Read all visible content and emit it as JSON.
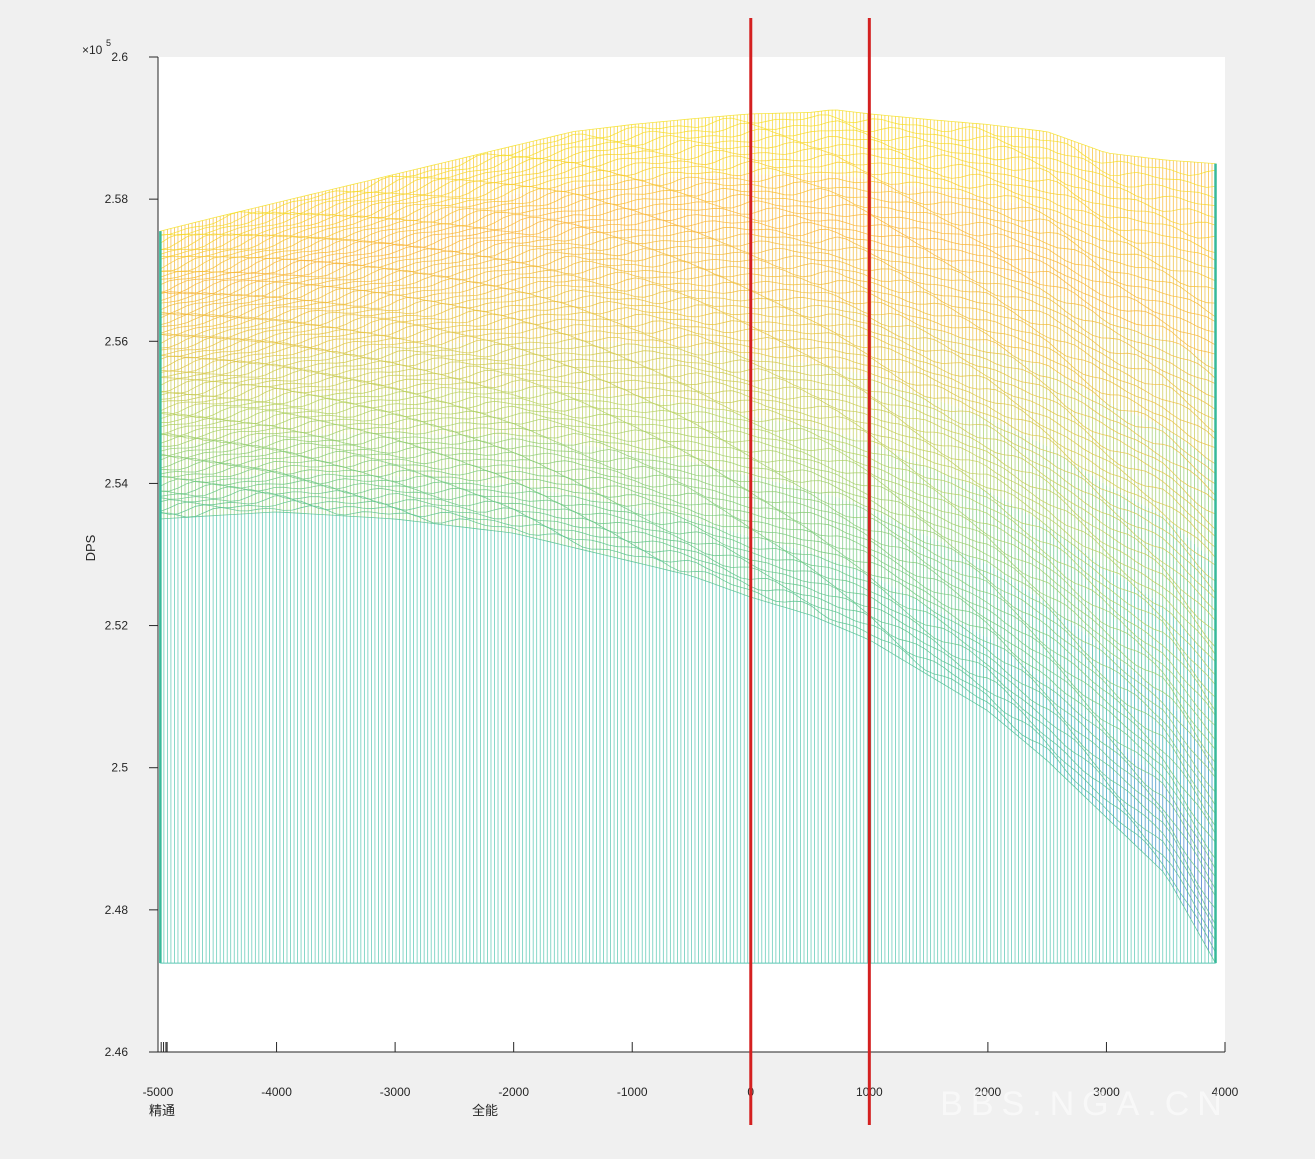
{
  "chart_data": {
    "type": "mesh-surface",
    "view": "side (x-z projection)",
    "ylabel": "DPS",
    "y_exponent_label": "×10",
    "y_exponent_power": "5",
    "ylim": [
      2.46,
      2.6
    ],
    "yticks": [
      2.46,
      2.48,
      2.5,
      2.52,
      2.54,
      2.56,
      2.58,
      2.6
    ],
    "ytick_labels": [
      "2.46",
      "2.48",
      "2.5",
      "2.52",
      "2.54",
      "2.56",
      "2.58",
      "2.6"
    ],
    "xlim": [
      -5000,
      4000
    ],
    "xticks": [
      -5000,
      -4000,
      -3000,
      -2000,
      -1000,
      0,
      1000,
      2000,
      3000,
      4000
    ],
    "xtick_labels": [
      "-5000",
      "-4000",
      "-3000",
      "-2000",
      "-1000",
      "0",
      "1000",
      "2000",
      "3000",
      "4000"
    ],
    "x_secondary_ticks": [
      -4990,
      -4970,
      -4950,
      -4940
    ],
    "xlabels": [
      "精通",
      "全能"
    ],
    "surface_base_z": 2.4725,
    "top_envelope": {
      "x": [
        -4980,
        -4500,
        -4000,
        -3500,
        -3000,
        -2500,
        -2000,
        -1500,
        -1000,
        -500,
        0,
        500,
        700,
        1000,
        1500,
        2000,
        2500,
        3000,
        3500,
        3920
      ],
      "z": [
        2.5755,
        2.5775,
        2.5795,
        2.5815,
        2.5835,
        2.5855,
        2.5875,
        2.5895,
        2.5905,
        2.5913,
        2.592,
        2.5922,
        2.5926,
        2.592,
        2.5912,
        2.5905,
        2.5895,
        2.5865,
        2.5855,
        2.585
      ]
    },
    "bottom_envelope": {
      "x": [
        -4980,
        -4500,
        -4000,
        -3500,
        -3000,
        -2500,
        -2000,
        -1500,
        -1000,
        -500,
        0,
        500,
        1000,
        1500,
        2000,
        2500,
        3000,
        3500,
        3920
      ],
      "z": [
        2.535,
        2.5355,
        2.536,
        2.5355,
        2.535,
        2.534,
        2.533,
        2.531,
        2.529,
        2.527,
        2.524,
        2.5215,
        2.518,
        2.513,
        2.508,
        2.501,
        2.493,
        2.485,
        2.4725
      ]
    },
    "reference_lines_x": [
      0,
      1000
    ],
    "reference_line_color": "#d42020",
    "colormap": [
      "#3b4cc0",
      "#2a78c8",
      "#20a5b4",
      "#37b99a",
      "#6dc67a",
      "#b5cf5c",
      "#e8bf3a",
      "#f9b233",
      "#f5e41c"
    ]
  },
  "watermark": "BBS.NGA.CN"
}
